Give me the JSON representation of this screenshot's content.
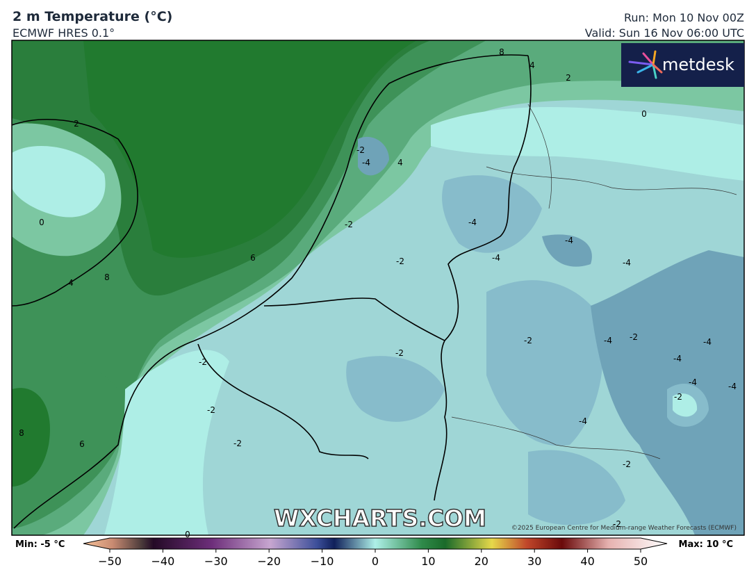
{
  "header": {
    "title": "2 m Temperature (°C)",
    "model": "ECMWF HRES 0.1°",
    "run": "Run: Mon 10 Nov 00Z",
    "valid": "Valid: Sun 16 Nov 06:00 UTC"
  },
  "logo": "metdesk",
  "watermark": "WXCHARTS.COM",
  "copyright": "©2025 European Centre for Medium-range Weather Forecasts (ECMWF)",
  "contour_labels": [
    2,
    0,
    4,
    8,
    6,
    8,
    6,
    8,
    4,
    2,
    0,
    -2,
    -4,
    4,
    -2,
    -4,
    -4,
    -4,
    -4,
    -2,
    -2,
    -2,
    -4,
    -2,
    -4,
    -4,
    -4,
    -4,
    -2,
    -2,
    -2,
    -2,
    -4,
    -2,
    -2,
    0
  ],
  "colorbar": {
    "min_label": "Min: -5 °C",
    "max_label": "Max: 10 °C",
    "ticks": [
      {
        "value": -50,
        "label": "−50"
      },
      {
        "value": -40,
        "label": "−40"
      },
      {
        "value": -30,
        "label": "−30"
      },
      {
        "value": -20,
        "label": "−20"
      },
      {
        "value": -10,
        "label": "−10"
      },
      0,
      10,
      20,
      30,
      40,
      50
    ]
  }
}
